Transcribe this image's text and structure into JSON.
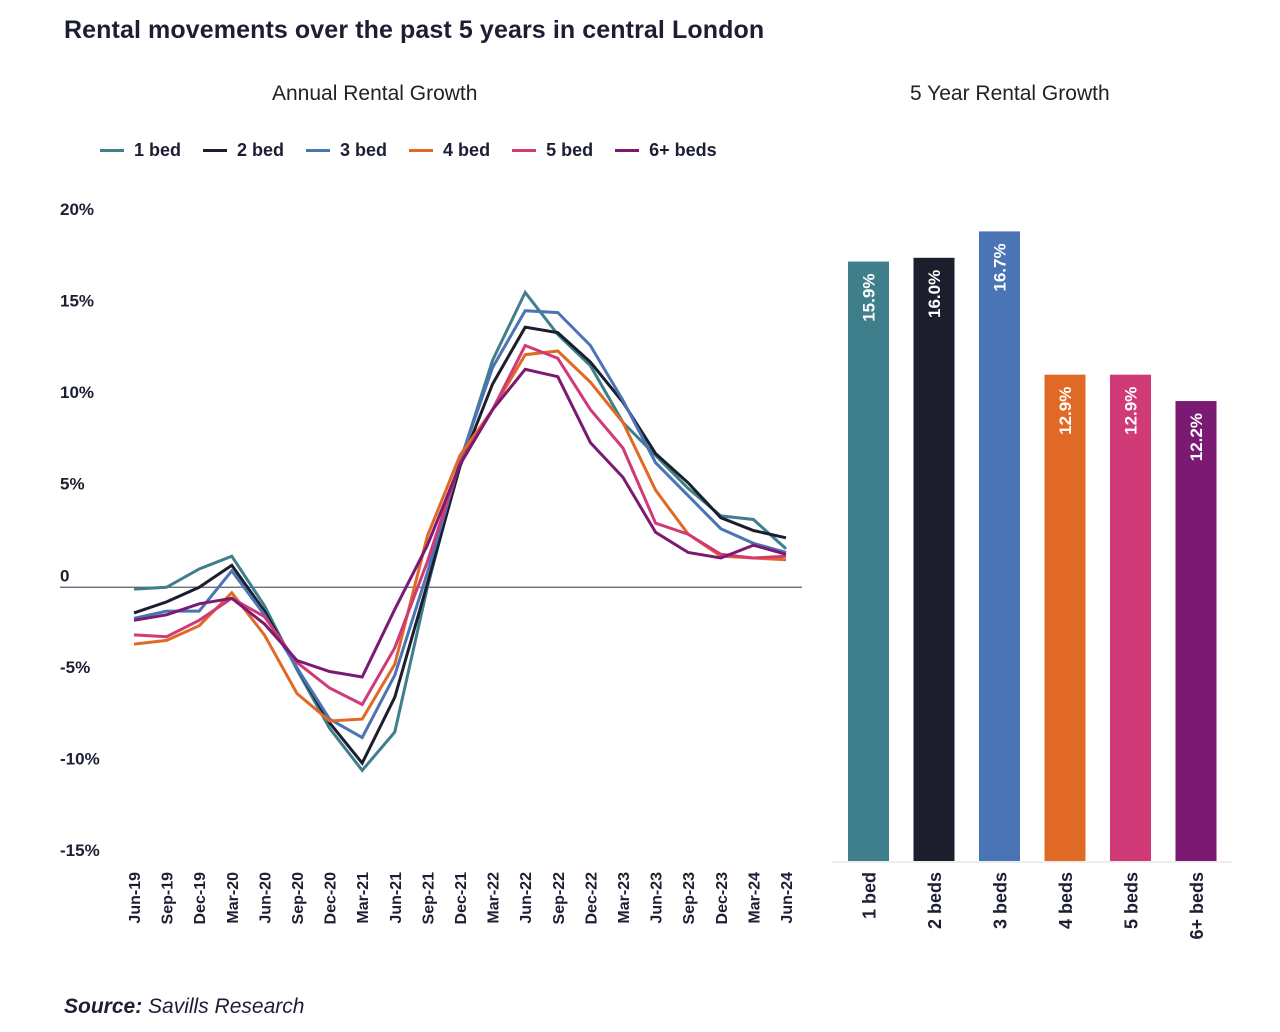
{
  "title": "Rental movements over the past 5 years in central London",
  "source": {
    "label": "Source:",
    "text": "Savills Research"
  },
  "colors": {
    "1 bed": "#3e7f8b",
    "2 bed": "#1c1e2e",
    "3 bed": "#4a74b4",
    "4 bed": "#e06a25",
    "5 bed": "#cf3a77",
    "6+ beds": "#7a1a72",
    "zero_line": "#5a5e6e",
    "baseline": "#dddddd"
  },
  "chart_data": [
    {
      "type": "line",
      "title": "Annual Rental Growth",
      "xlabel": "",
      "ylabel": "",
      "ylim": [
        -15,
        20
      ],
      "yticks": [
        20,
        15,
        10,
        5,
        0,
        -5,
        -10,
        -15
      ],
      "ytick_labels": [
        "20%",
        "15%",
        "10%",
        "5%",
        "0",
        "-5%",
        "-10%",
        "-15%"
      ],
      "grid": false,
      "zero_line": true,
      "legend": "top",
      "x": [
        "Jun-19",
        "Sep-19",
        "Dec-19",
        "Mar-20",
        "Jun-20",
        "Sep-20",
        "Dec-20",
        "Mar-21",
        "Jun-21",
        "Sep-21",
        "Dec-21",
        "Mar-22",
        "Jun-22",
        "Sep-22",
        "Dec-22",
        "Mar-23",
        "Jun-23",
        "Sep-23",
        "Dec-23",
        "Mar-24",
        "Jun-24"
      ],
      "series": [
        {
          "name": "1 bed",
          "values": [
            -0.1,
            0.0,
            1.0,
            1.7,
            -1.0,
            -4.5,
            -7.7,
            -10.0,
            -7.9,
            0.0,
            6.8,
            12.4,
            16.1,
            13.8,
            12.1,
            9.0,
            7.2,
            5.4,
            3.9,
            3.7,
            2.1
          ]
        },
        {
          "name": "2 bed",
          "values": [
            -1.4,
            -0.8,
            0.0,
            1.2,
            -1.3,
            -4.4,
            -7.4,
            -9.6,
            -6.0,
            0.2,
            6.6,
            11.1,
            14.2,
            13.9,
            12.3,
            10.1,
            7.3,
            5.7,
            3.8,
            3.1,
            2.7
          ]
        },
        {
          "name": "3 bed",
          "values": [
            -1.7,
            -1.3,
            -1.3,
            0.9,
            -1.5,
            -4.4,
            -7.2,
            -8.2,
            -4.8,
            0.8,
            6.9,
            12.0,
            15.1,
            15.0,
            13.2,
            10.2,
            6.8,
            5.0,
            3.2,
            2.4,
            1.9
          ]
        },
        {
          "name": "4 bed",
          "values": [
            -3.1,
            -2.9,
            -2.1,
            -0.3,
            -2.6,
            -5.8,
            -7.3,
            -7.2,
            -4.2,
            2.8,
            7.2,
            9.7,
            12.7,
            12.9,
            11.2,
            9.0,
            5.3,
            2.9,
            1.7,
            1.6,
            1.5
          ]
        },
        {
          "name": "5 bed",
          "values": [
            -2.6,
            -2.7,
            -1.8,
            -0.6,
            -1.6,
            -4.1,
            -5.5,
            -6.4,
            -3.3,
            1.4,
            6.8,
            9.7,
            13.2,
            12.5,
            9.7,
            7.6,
            3.5,
            2.9,
            1.8,
            1.6,
            1.7
          ]
        },
        {
          "name": "6+ beds",
          "values": [
            -1.8,
            -1.5,
            -0.9,
            -0.6,
            -2.0,
            -4.0,
            -4.6,
            -4.9,
            -1.2,
            2.3,
            6.7,
            9.7,
            11.9,
            11.5,
            7.9,
            6.0,
            3.0,
            1.9,
            1.6,
            2.3,
            1.8
          ]
        }
      ]
    },
    {
      "type": "bar",
      "title": "5 Year Rental Growth",
      "xlabel": "",
      "ylabel": "",
      "ylim": [
        0,
        20
      ],
      "categories": [
        "1 bed",
        "2 beds",
        "3 beds",
        "4 beds",
        "5 beds",
        "6+ beds"
      ],
      "values": [
        15.9,
        16.0,
        16.7,
        12.9,
        12.9,
        12.2
      ],
      "value_labels": [
        "15.9%",
        "16.0%",
        "16.7%",
        "12.9%",
        "12.9%",
        "12.2%"
      ],
      "series_colors": [
        "1 bed",
        "2 bed",
        "3 bed",
        "4 bed",
        "5 bed",
        "6+ beds"
      ]
    }
  ]
}
